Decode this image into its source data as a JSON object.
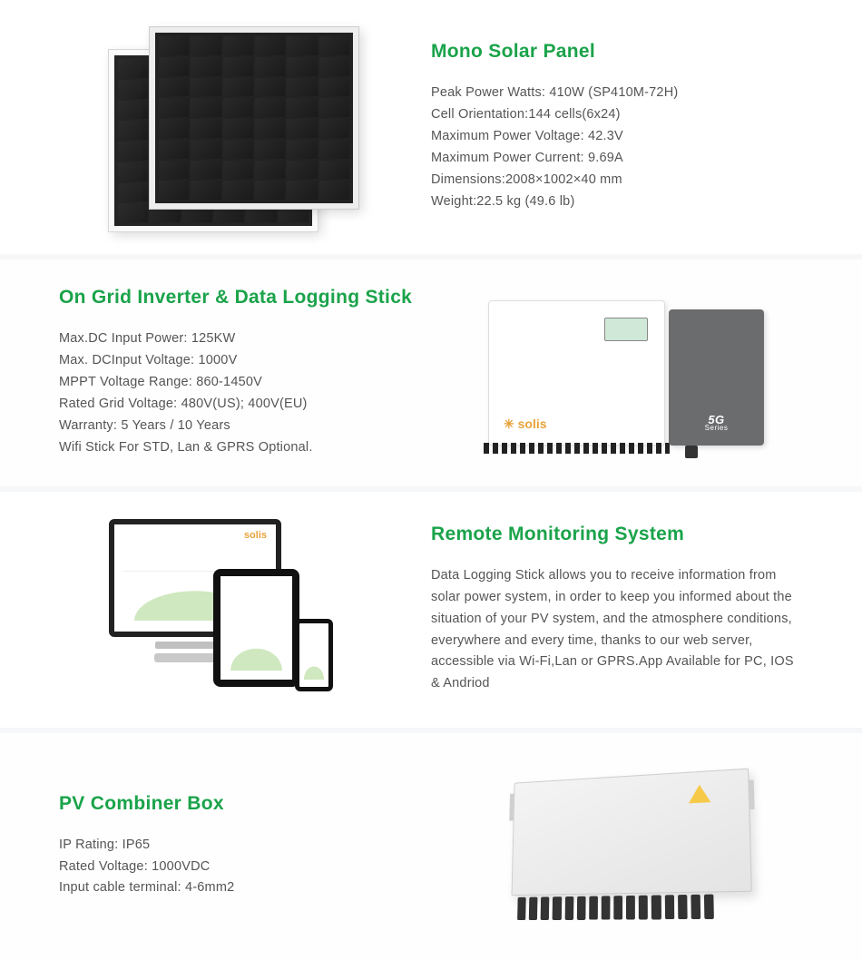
{
  "colors": {
    "heading": "#1aa34a",
    "body_text": "#555555"
  },
  "sections": {
    "panel": {
      "title": "Mono Solar Panel",
      "lines": [
        "Peak Power Watts: 410W (SP410M-72H)",
        "Cell Orientation:144 cells(6x24)",
        "Maximum Power Voltage: 42.3V",
        "Maximum Power Current: 9.69A",
        "Dimensions:2008×1002×40 mm",
        "Weight:22.5 kg (49.6 lb)"
      ]
    },
    "inverter": {
      "title": "On Grid Inverter & Data Logging Stick",
      "lines": [
        "Max.DC Input Power: 125KW",
        "Max. DCInput Voltage: 1000V",
        "MPPT Voltage Range: 860-1450V",
        "Rated Grid Voltage: 480V(US); 400V(EU)",
        "Warranty: 5 Years / 10 Years",
        "Wifi Stick For STD, Lan & GPRS Optional."
      ],
      "brand": "solis",
      "series_label": "5G",
      "series_sub": "Series"
    },
    "monitoring": {
      "title": "Remote Monitoring System",
      "description": "Data Logging Stick allows you to receive information from solar power system, in order to keep you informed about the situation of your PV system, and the atmosphere conditions, everywhere and every time, thanks to our web server, accessible via Wi-Fi,Lan or GPRS.App Available for PC, IOS & Andriod",
      "screen_brand": "solis"
    },
    "combiner": {
      "title": "PV Combiner Box",
      "lines": [
        "IP Rating: IP65",
        "Rated Voltage: 1000VDC",
        "Input cable terminal: 4-6mm2"
      ]
    }
  }
}
